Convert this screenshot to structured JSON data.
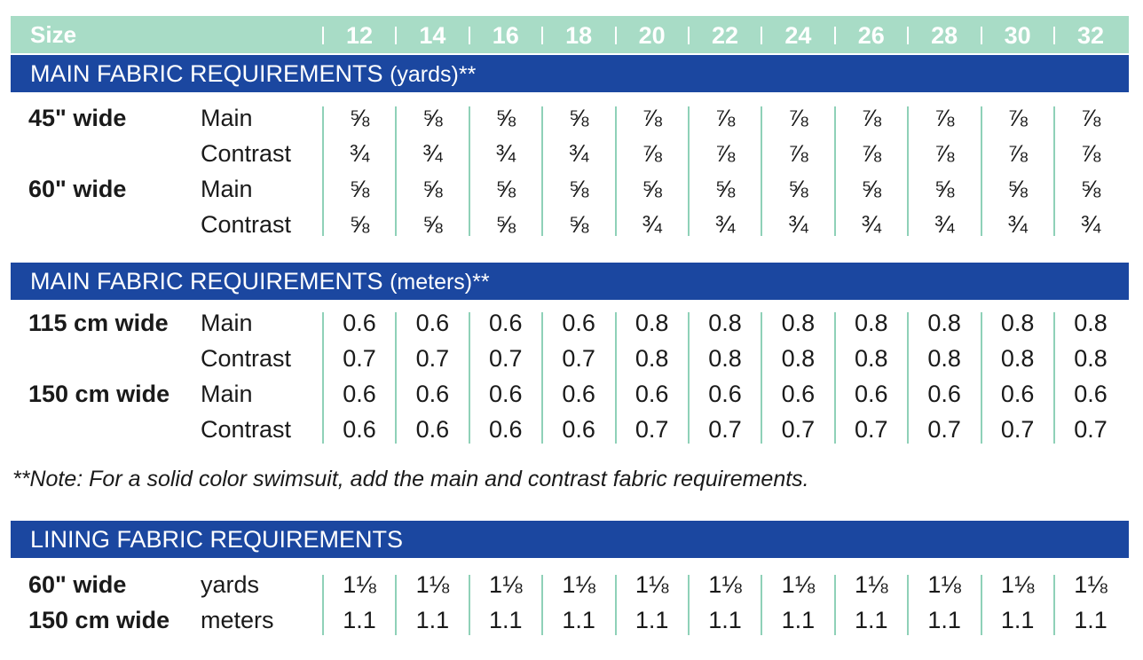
{
  "header": {
    "size_label": "Size",
    "sizes": [
      "12",
      "14",
      "16",
      "18",
      "20",
      "22",
      "24",
      "26",
      "28",
      "30",
      "32"
    ]
  },
  "colors": {
    "header_band": "#a8dcc6",
    "section_band": "#1b47a0",
    "column_divider": "#8fd1b8"
  },
  "yards_section": {
    "title": "MAIN FABRIC REQUIREMENTS",
    "unit": "(yards)**",
    "rows": [
      {
        "width": "45\" wide",
        "type": "Main",
        "values": [
          "⅝",
          "⅝",
          "⅝",
          "⅝",
          "⅞",
          "⅞",
          "⅞",
          "⅞",
          "⅞",
          "⅞",
          "⅞"
        ]
      },
      {
        "width": "",
        "type": "Contrast",
        "values": [
          "¾",
          "¾",
          "¾",
          "¾",
          "⅞",
          "⅞",
          "⅞",
          "⅞",
          "⅞",
          "⅞",
          "⅞"
        ]
      },
      {
        "width": "60\" wide",
        "type": "Main",
        "values": [
          "⅝",
          "⅝",
          "⅝",
          "⅝",
          "⅝",
          "⅝",
          "⅝",
          "⅝",
          "⅝",
          "⅝",
          "⅝"
        ]
      },
      {
        "width": "",
        "type": "Contrast",
        "values": [
          "⅝",
          "⅝",
          "⅝",
          "⅝",
          "¾",
          "¾",
          "¾",
          "¾",
          "¾",
          "¾",
          "¾"
        ]
      }
    ]
  },
  "meters_section": {
    "title": "MAIN FABRIC REQUIREMENTS",
    "unit": "(meters)**",
    "rows": [
      {
        "width": "115 cm wide",
        "type": "Main",
        "values": [
          "0.6",
          "0.6",
          "0.6",
          "0.6",
          "0.8",
          "0.8",
          "0.8",
          "0.8",
          "0.8",
          "0.8",
          "0.8"
        ]
      },
      {
        "width": "",
        "type": "Contrast",
        "values": [
          "0.7",
          "0.7",
          "0.7",
          "0.7",
          "0.8",
          "0.8",
          "0.8",
          "0.8",
          "0.8",
          "0.8",
          "0.8"
        ]
      },
      {
        "width": "150 cm wide",
        "type": "Main",
        "values": [
          "0.6",
          "0.6",
          "0.6",
          "0.6",
          "0.6",
          "0.6",
          "0.6",
          "0.6",
          "0.6",
          "0.6",
          "0.6"
        ]
      },
      {
        "width": "",
        "type": "Contrast",
        "values": [
          "0.6",
          "0.6",
          "0.6",
          "0.6",
          "0.7",
          "0.7",
          "0.7",
          "0.7",
          "0.7",
          "0.7",
          "0.7"
        ]
      }
    ]
  },
  "note": "**Note: For a solid color swimsuit, add the main and contrast fabric requirements.",
  "lining_section": {
    "title": "LINING FABRIC REQUIREMENTS",
    "rows": [
      {
        "width": "60\" wide",
        "type": "yards",
        "values": [
          "1⅛",
          "1⅛",
          "1⅛",
          "1⅛",
          "1⅛",
          "1⅛",
          "1⅛",
          "1⅛",
          "1⅛",
          "1⅛",
          "1⅛"
        ]
      },
      {
        "width": "150 cm wide",
        "type": "meters",
        "values": [
          "1.1",
          "1.1",
          "1.1",
          "1.1",
          "1.1",
          "1.1",
          "1.1",
          "1.1",
          "1.1",
          "1.1",
          "1.1"
        ]
      }
    ]
  }
}
